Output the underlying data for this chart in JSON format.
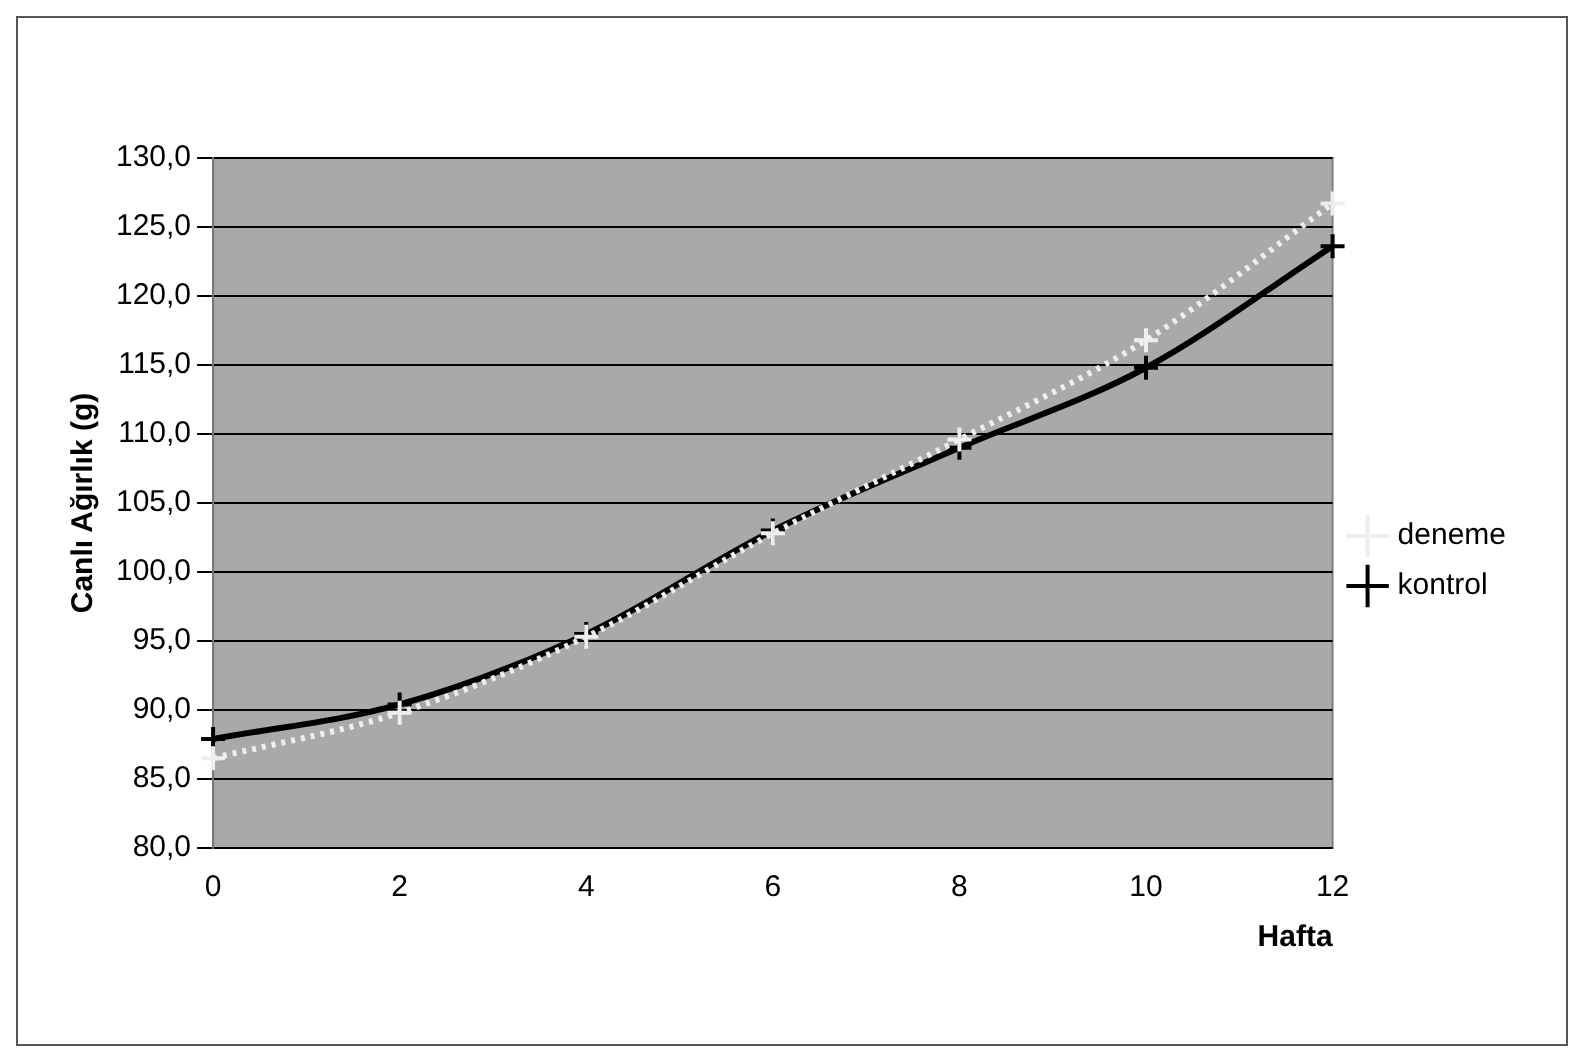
{
  "chart_data": {
    "type": "line",
    "xlabel": "Hafta",
    "ylabel": "Canlı Ağırlık (g)",
    "categories": [
      "0",
      "2",
      "4",
      "6",
      "8",
      "10",
      "12"
    ],
    "series": [
      {
        "name": "deneme",
        "color": "#eeeeee",
        "marker": "cross",
        "line_style": "dotted",
        "values": [
          86.5,
          89.8,
          95.3,
          102.8,
          109.6,
          116.8,
          126.7
        ]
      },
      {
        "name": "kontrol",
        "color": "#000000",
        "marker": "cross",
        "line_style": "solid",
        "values": [
          87.9,
          90.4,
          95.5,
          103.0,
          109.0,
          114.8,
          123.6
        ]
      }
    ],
    "ylim": [
      80,
      130
    ],
    "yticks": [
      {
        "value": 80,
        "label": "80,0"
      },
      {
        "value": 85,
        "label": "85,0"
      },
      {
        "value": 90,
        "label": "90,0"
      },
      {
        "value": 95,
        "label": "95,0"
      },
      {
        "value": 100,
        "label": "100,0"
      },
      {
        "value": 105,
        "label": "105,0"
      },
      {
        "value": 110,
        "label": "110,0"
      },
      {
        "value": 115,
        "label": "115,0"
      },
      {
        "value": 120,
        "label": "120,0"
      },
      {
        "value": 125,
        "label": "125,0"
      },
      {
        "value": 130,
        "label": "130,0"
      }
    ],
    "grid": "y",
    "legend": "right"
  }
}
